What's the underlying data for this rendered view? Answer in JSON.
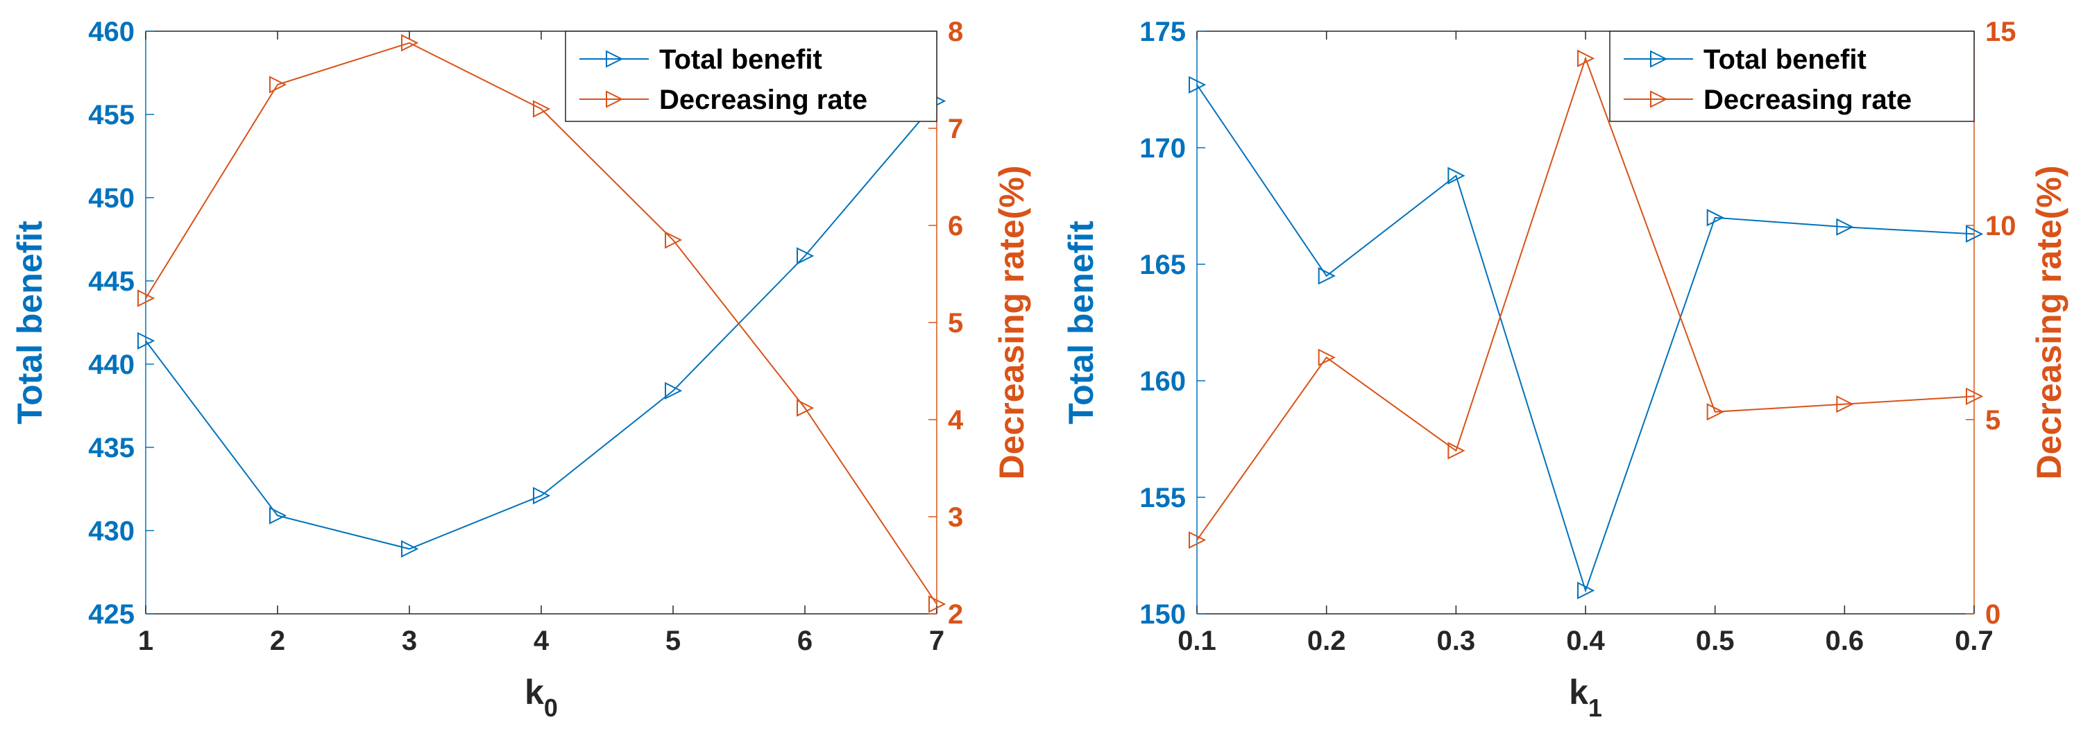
{
  "colors": {
    "left_axis": "#0072BD",
    "right_axis": "#D95319",
    "frame": "#262626"
  },
  "chart_data": [
    {
      "type": "line",
      "x": [
        1,
        2,
        3,
        4,
        5,
        6,
        7
      ],
      "xlabel_base": "k",
      "xlabel_sub": "0",
      "xlim": [
        1,
        7
      ],
      "xticks": [
        1,
        2,
        3,
        4,
        5,
        6,
        7
      ],
      "xtick_labels": [
        "1",
        "2",
        "3",
        "4",
        "5",
        "6",
        "7"
      ],
      "ylabel_left": "Total benefit",
      "ylim_left": [
        425,
        460
      ],
      "yticks_left": [
        425,
        430,
        435,
        440,
        445,
        450,
        455,
        460
      ],
      "ytick_labels_left": [
        "425",
        "430",
        "435",
        "440",
        "445",
        "450",
        "455",
        "460"
      ],
      "ylabel_right": "Decreasing rate(%)",
      "ylim_right": [
        2,
        8
      ],
      "yticks_right": [
        2,
        3,
        4,
        5,
        6,
        7,
        8
      ],
      "ytick_labels_right": [
        "2",
        "3",
        "4",
        "5",
        "6",
        "7",
        "8"
      ],
      "legend_position": "top-right",
      "grid": false,
      "series": [
        {
          "name": "Total benefit",
          "axis": "left",
          "marker": "triangle-right",
          "values": [
            441.4,
            430.9,
            428.9,
            432.1,
            438.4,
            446.5,
            455.8
          ]
        },
        {
          "name": "Decreasing rate",
          "axis": "right",
          "marker": "triangle-right",
          "values": [
            5.25,
            7.45,
            7.88,
            7.2,
            5.85,
            4.12,
            2.1
          ]
        }
      ]
    },
    {
      "type": "line",
      "x": [
        0.1,
        0.2,
        0.3,
        0.4,
        0.5,
        0.6,
        0.7
      ],
      "xlabel_base": "k",
      "xlabel_sub": "1",
      "xlim": [
        0.1,
        0.7
      ],
      "xticks": [
        0.1,
        0.2,
        0.3,
        0.4,
        0.5,
        0.6,
        0.7
      ],
      "xtick_labels": [
        "0.1",
        "0.2",
        "0.3",
        "0.4",
        "0.5",
        "0.6",
        "0.7"
      ],
      "ylabel_left": "Total benefit",
      "ylim_left": [
        150,
        175
      ],
      "yticks_left": [
        150,
        155,
        160,
        165,
        170,
        175
      ],
      "ytick_labels_left": [
        "150",
        "155",
        "160",
        "165",
        "170",
        "175"
      ],
      "ylabel_right": "Decreasing rate(%)",
      "ylim_right": [
        0,
        15
      ],
      "yticks_right": [
        0,
        5,
        10,
        15
      ],
      "ytick_labels_right": [
        "0",
        "5",
        "10",
        "15"
      ],
      "legend_position": "top-right",
      "grid": false,
      "series": [
        {
          "name": "Total benefit",
          "axis": "left",
          "marker": "triangle-right",
          "values": [
            172.7,
            164.5,
            168.8,
            151.0,
            167.0,
            166.6,
            166.3
          ]
        },
        {
          "name": "Decreasing rate",
          "axis": "right",
          "marker": "triangle-right",
          "values": [
            1.9,
            6.6,
            4.2,
            14.3,
            5.2,
            5.4,
            5.6
          ]
        }
      ]
    }
  ]
}
